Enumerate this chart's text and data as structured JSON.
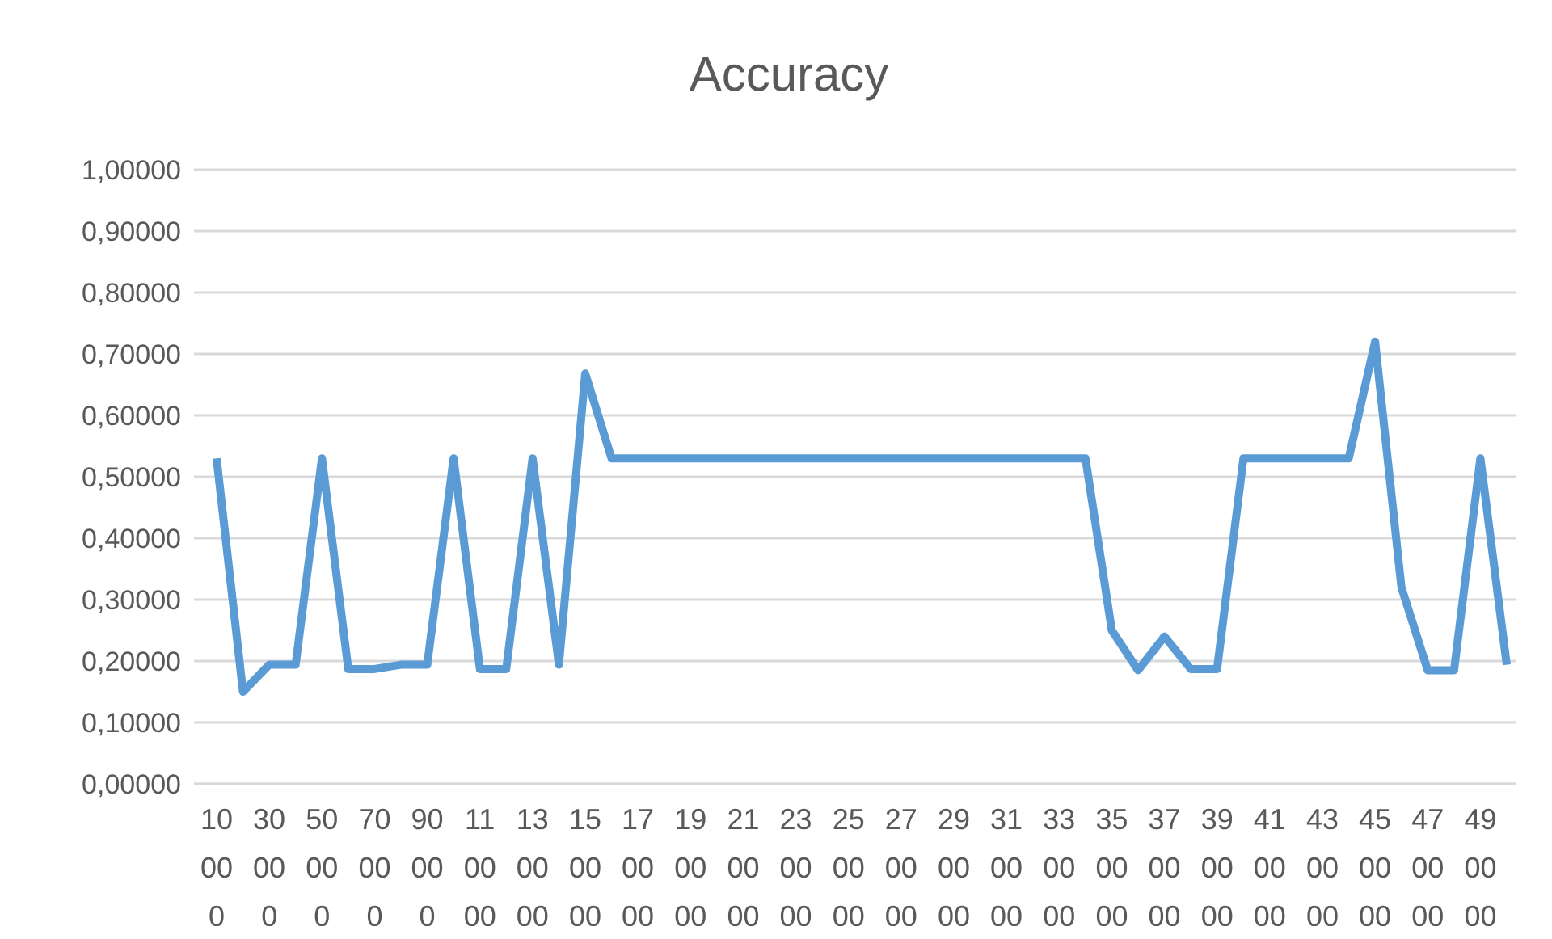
{
  "chart_data": {
    "type": "line",
    "title": "Accuracy",
    "categories": [
      "10000",
      null,
      "30000",
      null,
      "50000",
      null,
      "70000",
      null,
      "90000",
      null,
      "110000",
      null,
      "130000",
      null,
      "150000",
      null,
      "170000",
      null,
      "190000",
      null,
      "210000",
      null,
      "230000",
      null,
      "250000",
      null,
      "270000",
      null,
      "290000",
      null,
      "310000",
      null,
      "330000",
      null,
      "350000",
      null,
      "370000",
      null,
      "390000",
      null,
      "410000",
      null,
      "430000",
      null,
      "450000",
      null,
      "470000",
      null,
      "490000",
      null
    ],
    "series": [
      {
        "color": "#5b9bd5",
        "values": [
          0.53,
          0.15,
          0.194,
          0.194,
          0.53,
          0.187,
          0.187,
          0.194,
          0.194,
          0.53,
          0.187,
          0.187,
          0.53,
          0.194,
          0.668,
          0.53,
          0.53,
          0.53,
          0.53,
          0.53,
          0.53,
          0.53,
          0.53,
          0.53,
          0.53,
          0.53,
          0.53,
          0.53,
          0.53,
          0.53,
          0.53,
          0.53,
          0.53,
          0.53,
          0.25,
          0.185,
          0.24,
          0.187,
          0.187,
          0.53,
          0.53,
          0.53,
          0.53,
          0.53,
          0.72,
          0.32,
          0.185,
          0.185,
          0.53,
          0.194
        ]
      }
    ],
    "ylim": [
      0,
      1
    ],
    "yticks": [
      {
        "value": 0,
        "label": "0,00000"
      },
      {
        "value": 0.1,
        "label": "0,10000"
      },
      {
        "value": 0.2,
        "label": "0,20000"
      },
      {
        "value": 0.3,
        "label": "0,30000"
      },
      {
        "value": 0.4,
        "label": "0,40000"
      },
      {
        "value": 0.5,
        "label": "0,50000"
      },
      {
        "value": 0.6,
        "label": "0,60000"
      },
      {
        "value": 0.7,
        "label": "0,70000"
      },
      {
        "value": 0.8,
        "label": "0,80000"
      },
      {
        "value": 0.9,
        "label": "0,90000"
      },
      {
        "value": 1,
        "label": "1,00000"
      }
    ],
    "grid": "y",
    "marker": "none",
    "line_style": "solid"
  }
}
